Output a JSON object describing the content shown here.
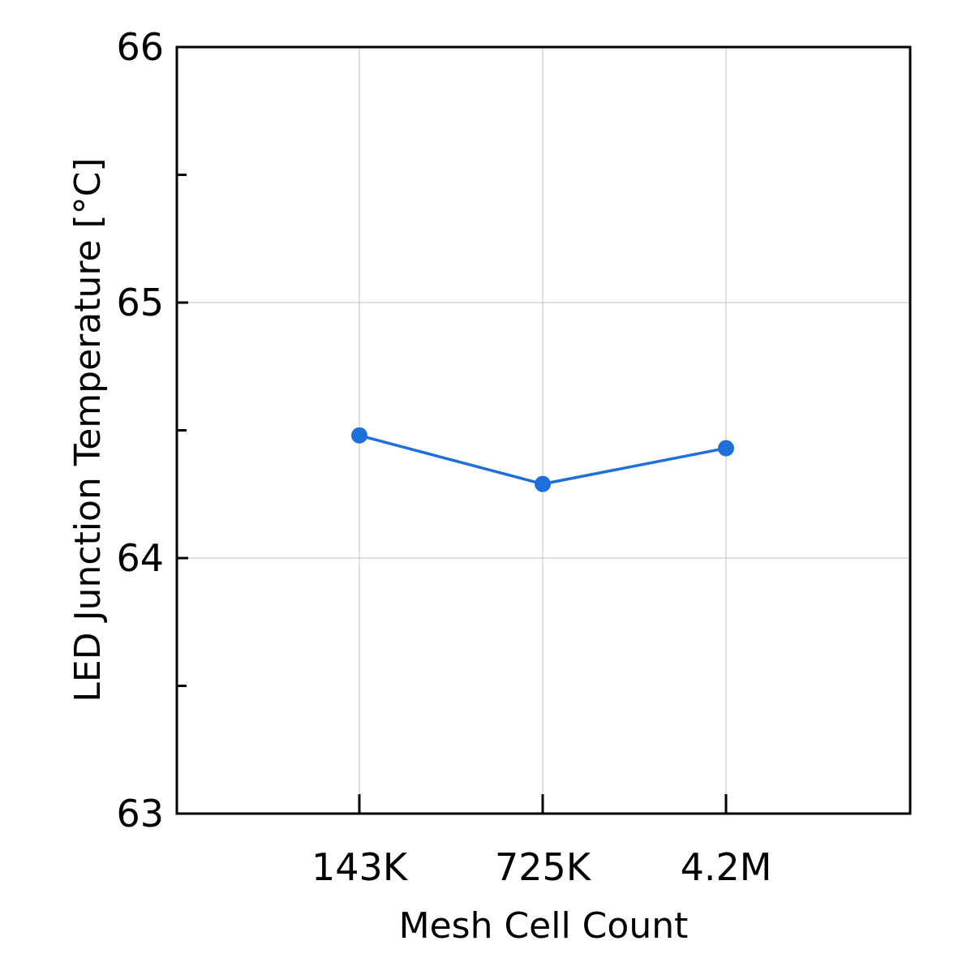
{
  "chart_data": {
    "type": "line",
    "categories": [
      "143K",
      "725K",
      "4.2M"
    ],
    "series": [
      {
        "values": [
          64.48,
          64.29,
          64.43
        ],
        "color": "#1f6fdb",
        "marker": "circle"
      }
    ],
    "xlabel": "Mesh Cell Count",
    "ylabel": "LED Junction Temperature [°C]",
    "ylim": [
      63,
      66
    ],
    "yticks": [
      63,
      64,
      65,
      66
    ],
    "yminor_ticks": [
      63.5,
      64.5,
      65.5
    ],
    "grid": true,
    "legend": "none"
  }
}
